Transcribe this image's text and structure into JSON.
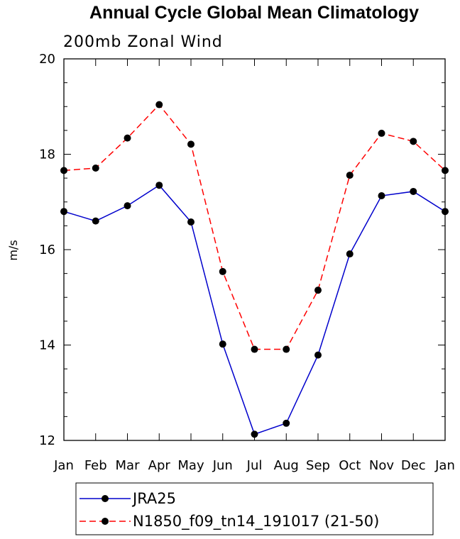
{
  "chart_data": {
    "type": "line",
    "title": "Annual Cycle Global Mean Climatology",
    "subtitle": "200mb Zonal Wind",
    "xlabel": "",
    "ylabel": "m/s",
    "categories": [
      "Jan",
      "Feb",
      "Mar",
      "Apr",
      "May",
      "Jun",
      "Jul",
      "Aug",
      "Sep",
      "Oct",
      "Nov",
      "Dec",
      "Jan"
    ],
    "ylim": [
      12,
      20
    ],
    "y_major_ticks": [
      12,
      14,
      16,
      18,
      20
    ],
    "y_tick_labels": [
      "12",
      "14",
      "16",
      "18",
      "20"
    ],
    "y_minor_step": 0.5,
    "grid": false,
    "legend_position": "bottom",
    "series": [
      {
        "name": "JRA25",
        "color": "#0000cc",
        "dash": "solid",
        "values": [
          16.8,
          16.6,
          16.92,
          17.35,
          16.58,
          14.02,
          12.13,
          12.36,
          13.79,
          15.91,
          17.13,
          17.22,
          16.8
        ]
      },
      {
        "name": "N1850_f09_tn14_191017 (21-50)",
        "color": "#ff0000",
        "dash": "dashed",
        "values": [
          17.66,
          17.71,
          18.34,
          19.04,
          18.21,
          15.54,
          13.91,
          13.91,
          15.15,
          17.56,
          18.44,
          18.27,
          17.66
        ]
      }
    ]
  }
}
